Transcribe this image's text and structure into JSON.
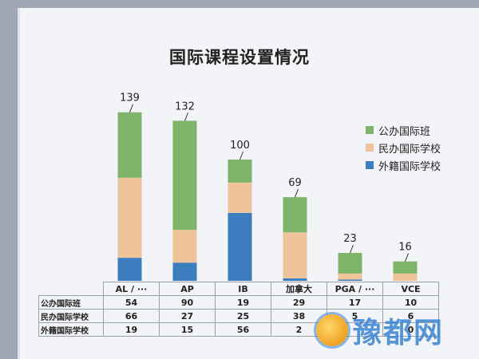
{
  "chart_data": {
    "type": "bar",
    "stacked": true,
    "title": "国际课程设置情况",
    "categories": [
      "AL / ···",
      "AP",
      "IB",
      "加拿大",
      "PGA / ···",
      "VCE"
    ],
    "totals": [
      "139",
      "132",
      "100",
      "69",
      "23",
      "16"
    ],
    "series": [
      {
        "name": "外籍国际学校",
        "color": "#3b7dbf",
        "values": [
          19,
          15,
          56,
          2,
          1,
          0
        ]
      },
      {
        "name": "民办国际学校",
        "color": "#f0c49b",
        "values": [
          66,
          27,
          25,
          38,
          5,
          6
        ]
      },
      {
        "name": "公办国际班",
        "color": "#7fb56b",
        "values": [
          54,
          90,
          19,
          29,
          17,
          10
        ]
      }
    ],
    "legend_position": "right",
    "ylim": [
      0,
      150
    ],
    "table": {
      "rows": [
        {
          "label": "公办国际班",
          "cells": [
            "54",
            "90",
            "19",
            "29",
            "17",
            "10"
          ]
        },
        {
          "label": "民办国际学校",
          "cells": [
            "66",
            "27",
            "25",
            "38",
            "5",
            "6"
          ]
        },
        {
          "label": "外籍国际学校",
          "cells": [
            "19",
            "15",
            "56",
            "2",
            "",
            "0"
          ]
        }
      ]
    }
  },
  "legend": [
    "公办国际班",
    "民办国际学校",
    "外籍国际学校"
  ],
  "watermark_text": "豫都网"
}
